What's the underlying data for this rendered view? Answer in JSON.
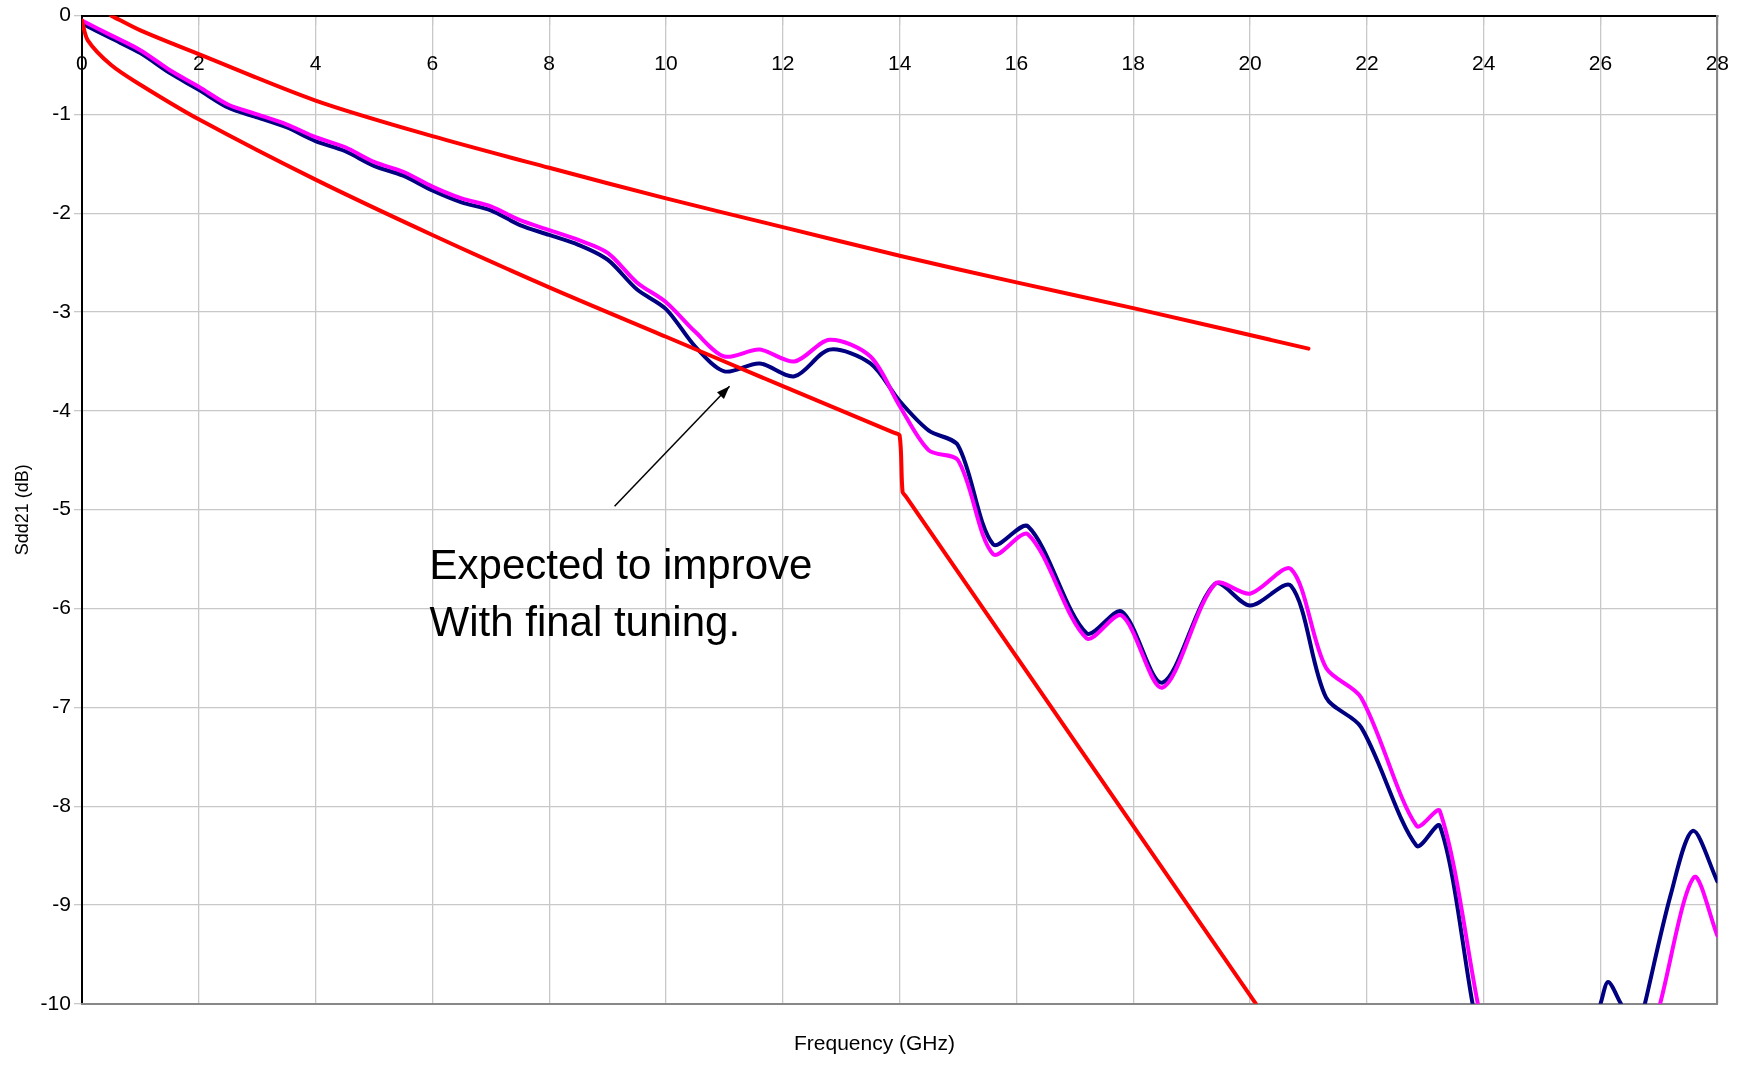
{
  "chart_data": {
    "type": "line",
    "xlabel": "Frequency (GHz)",
    "ylabel": "Sdd21 (dB)",
    "xlim": [
      0,
      28
    ],
    "xticks": [
      0,
      2,
      4,
      6,
      8,
      10,
      12,
      14,
      16,
      18,
      20,
      22,
      24,
      26,
      28
    ],
    "ylim": [
      -10,
      0
    ],
    "yticks": [
      -10,
      -9,
      -8,
      -7,
      -6,
      -5,
      -4,
      -3,
      -2,
      -1,
      0
    ],
    "grid": true,
    "legend": false,
    "marker": "none",
    "line_style": "solid",
    "annotations": [
      "Expected to improve\nWith final tuning."
    ],
    "series": [
      {
        "color": "#000080",
        "x": [
          0,
          0.5,
          1,
          1.5,
          2,
          2.5,
          3,
          3.5,
          4,
          4.5,
          5,
          5.5,
          6,
          6.5,
          7,
          7.5,
          8,
          8.5,
          9,
          9.5,
          10,
          10.5,
          11,
          11.6,
          12.2,
          12.8,
          13.5,
          14,
          14.5,
          15,
          15.6,
          16.2,
          17.2,
          17.8,
          18.5,
          19.4,
          20,
          20.7,
          21.3,
          21.9,
          22.85,
          23.25,
          23.81,
          25,
          26,
          26.13,
          26.35,
          26.5,
          26.76,
          27.2,
          27.58,
          28
        ],
        "values": [
          -0.08,
          -0.23,
          -0.38,
          -0.58,
          -0.75,
          -0.93,
          -1.03,
          -1.13,
          -1.27,
          -1.37,
          -1.52,
          -1.62,
          -1.77,
          -1.89,
          -1.97,
          -2.12,
          -2.22,
          -2.32,
          -2.47,
          -2.77,
          -2.97,
          -3.35,
          -3.6,
          -3.52,
          -3.65,
          -3.38,
          -3.52,
          -3.9,
          -4.2,
          -4.35,
          -5.35,
          -5.17,
          -6.25,
          -6.03,
          -6.75,
          -5.75,
          -5.97,
          -5.77,
          -6.9,
          -7.2,
          -8.4,
          -8.2,
          -10,
          null,
          -10,
          -9.78,
          -10,
          null,
          -10,
          -8.9,
          -8.25,
          -8.76
        ]
      },
      {
        "color": "#ff00ff",
        "x": [
          0,
          0.5,
          1,
          1.5,
          2,
          2.5,
          3,
          3.5,
          4,
          4.5,
          5,
          5.5,
          6,
          6.5,
          7,
          7.5,
          8,
          8.5,
          9,
          9.5,
          10,
          10.5,
          11,
          11.6,
          12.2,
          12.8,
          13.5,
          14,
          14.5,
          15,
          15.6,
          16.2,
          17.2,
          17.8,
          18.5,
          19.4,
          20,
          20.7,
          21.3,
          21.9,
          22.85,
          23.25,
          23.9,
          25,
          27.02,
          27.6,
          28
        ],
        "values": [
          -0.05,
          -0.2,
          -0.35,
          -0.55,
          -0.72,
          -0.9,
          -1.0,
          -1.1,
          -1.23,
          -1.33,
          -1.48,
          -1.58,
          -1.73,
          -1.85,
          -1.93,
          -2.07,
          -2.17,
          -2.27,
          -2.4,
          -2.7,
          -2.9,
          -3.2,
          -3.45,
          -3.38,
          -3.5,
          -3.28,
          -3.45,
          -3.95,
          -4.4,
          -4.5,
          -5.45,
          -5.25,
          -6.3,
          -6.07,
          -6.8,
          -5.75,
          -5.85,
          -5.6,
          -6.6,
          -6.9,
          -8.2,
          -8.05,
          -10,
          null,
          -10,
          -8.72,
          -9.31
        ]
      },
      {
        "color": "#ff0000",
        "x": [
          0.5,
          1,
          2,
          4,
          6,
          8,
          10,
          12,
          14,
          16,
          18,
          21
        ],
        "values": [
          0,
          -0.15,
          -0.39,
          -0.86,
          -1.22,
          -1.54,
          -1.85,
          -2.14,
          -2.43,
          -2.7,
          -2.96,
          -3.37
        ]
      },
      {
        "color": "#ff0000",
        "x": [
          0,
          0.1,
          0.5,
          1,
          2,
          4,
          6,
          8,
          10,
          12,
          13.9,
          14,
          14.05,
          14.1,
          20.1
        ],
        "values": [
          -0.05,
          -0.25,
          -0.5,
          -0.7,
          -1.05,
          -1.66,
          -2.22,
          -2.75,
          -3.25,
          -3.75,
          -4.22,
          -4.25,
          -4.82,
          -4.86,
          -10
        ]
      }
    ]
  }
}
